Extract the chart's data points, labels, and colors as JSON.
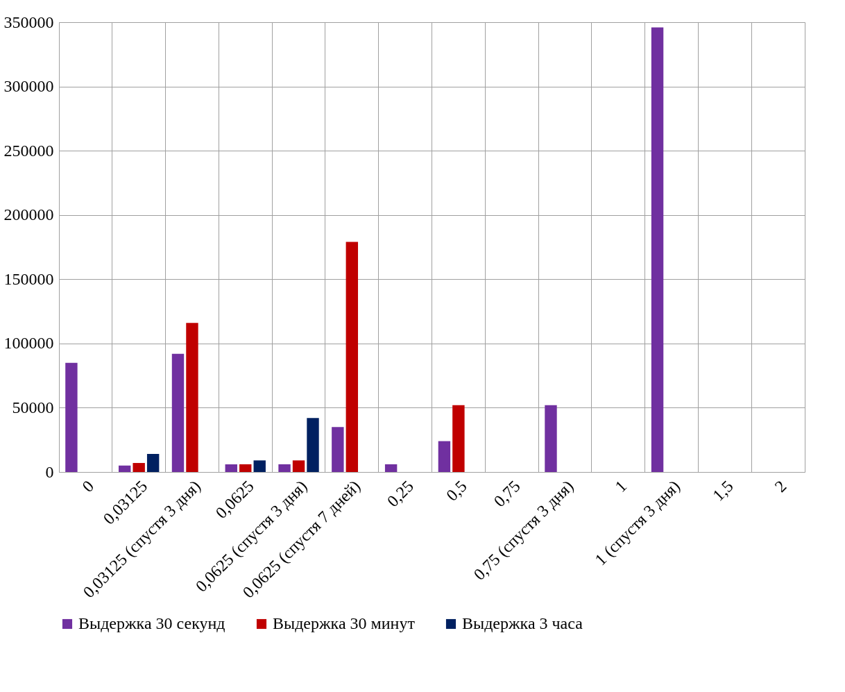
{
  "chart_data": {
    "type": "bar",
    "categories": [
      "0",
      "0,03125",
      "0,03125 (спустя 3 дня)",
      "0,0625",
      "0,0625 (спустя 3 дня)",
      "0,0625 (спустя 7 дней)",
      "0,25",
      "0,5",
      "0,75",
      "0,75 (спустя 3 дня)",
      "1",
      "1 (спустя 3 дня)",
      "1,5",
      "2"
    ],
    "series": [
      {
        "name": "Выдержка 30 секунд",
        "color": "#7030a0",
        "values": [
          85000,
          5000,
          92000,
          6000,
          6000,
          35000,
          6000,
          24000,
          0,
          52000,
          0,
          346000,
          0,
          0
        ]
      },
      {
        "name": "Выдержка 30 минут",
        "color": "#c00000",
        "values": [
          0,
          7000,
          116000,
          6000,
          9000,
          179000,
          0,
          52000,
          0,
          0,
          0,
          0,
          0,
          0
        ]
      },
      {
        "name": "Выдержка 3 часа",
        "color": "#002060",
        "values": [
          0,
          14000,
          0,
          9000,
          42000,
          0,
          0,
          0,
          0,
          0,
          0,
          0,
          0,
          0
        ]
      }
    ],
    "ylim": [
      0,
      350000
    ],
    "yticks": [
      0,
      50000,
      100000,
      150000,
      200000,
      250000,
      300000,
      350000
    ],
    "grid": true,
    "legend": "bottom"
  }
}
